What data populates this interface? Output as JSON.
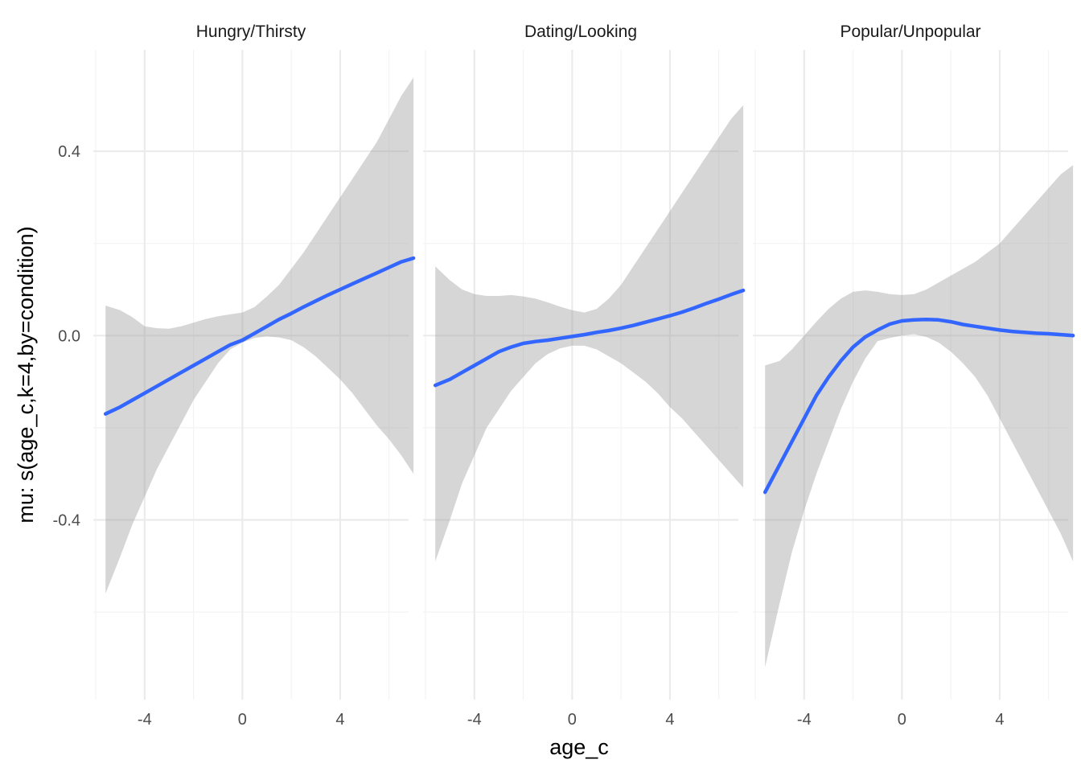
{
  "chart_data": {
    "type": "line",
    "facet_by": "condition",
    "xlabel": "age_c",
    "ylabel": "mu: s(age_c,k=4,by=condition)",
    "xlim": [
      -6.1,
      6.8
    ],
    "ylim": [
      -0.79,
      0.62
    ],
    "x_ticks": [
      -4,
      0,
      4
    ],
    "x_tick_labels": [
      "-4",
      "0",
      "4"
    ],
    "y_ticks": [
      0.4,
      0.0,
      -0.4
    ],
    "y_tick_labels": [
      "0.4",
      "0.0",
      "-0.4"
    ],
    "grid": true,
    "legend": "none",
    "line_color": "#3366ff",
    "ribbon_color": "#999999",
    "panels": [
      {
        "title": "Hungry/Thirsty",
        "x": [
          -5.6,
          -5.0,
          -4.5,
          -4.0,
          -3.5,
          -3.0,
          -2.5,
          -2.0,
          -1.5,
          -1.0,
          -0.5,
          0.0,
          0.5,
          1.0,
          1.5,
          2.0,
          2.5,
          3.0,
          3.5,
          4.0,
          4.5,
          5.0,
          5.5,
          6.0,
          6.5,
          7.0
        ],
        "fit": [
          -0.17,
          -0.155,
          -0.14,
          -0.125,
          -0.11,
          -0.095,
          -0.08,
          -0.065,
          -0.05,
          -0.035,
          -0.02,
          -0.01,
          0.005,
          0.02,
          0.035,
          0.048,
          0.062,
          0.075,
          0.088,
          0.1,
          0.112,
          0.124,
          0.136,
          0.148,
          0.16,
          0.168
        ],
        "lower": [
          -0.56,
          -0.48,
          -0.41,
          -0.35,
          -0.29,
          -0.24,
          -0.19,
          -0.14,
          -0.1,
          -0.06,
          -0.03,
          -0.015,
          -0.005,
          -0.002,
          -0.004,
          -0.01,
          -0.025,
          -0.045,
          -0.07,
          -0.095,
          -0.125,
          -0.16,
          -0.195,
          -0.225,
          -0.26,
          -0.3
        ],
        "upper": [
          0.065,
          0.055,
          0.04,
          0.02,
          0.016,
          0.015,
          0.02,
          0.028,
          0.036,
          0.042,
          0.046,
          0.05,
          0.062,
          0.085,
          0.11,
          0.145,
          0.18,
          0.22,
          0.26,
          0.3,
          0.34,
          0.38,
          0.42,
          0.47,
          0.52,
          0.56
        ]
      },
      {
        "title": "Dating/Looking",
        "x": [
          -5.6,
          -5.0,
          -4.5,
          -4.0,
          -3.5,
          -3.0,
          -2.5,
          -2.0,
          -1.5,
          -1.0,
          -0.5,
          0.0,
          0.5,
          1.0,
          1.5,
          2.0,
          2.5,
          3.0,
          3.5,
          4.0,
          4.5,
          5.0,
          5.5,
          6.0,
          6.5,
          7.0
        ],
        "fit": [
          -0.108,
          -0.095,
          -0.08,
          -0.065,
          -0.05,
          -0.035,
          -0.025,
          -0.017,
          -0.013,
          -0.01,
          -0.006,
          -0.002,
          0.002,
          0.007,
          0.011,
          0.016,
          0.022,
          0.029,
          0.036,
          0.043,
          0.051,
          0.06,
          0.07,
          0.079,
          0.089,
          0.098
        ],
        "lower": [
          -0.49,
          -0.4,
          -0.32,
          -0.26,
          -0.2,
          -0.16,
          -0.12,
          -0.09,
          -0.06,
          -0.04,
          -0.028,
          -0.022,
          -0.022,
          -0.03,
          -0.045,
          -0.06,
          -0.08,
          -0.1,
          -0.125,
          -0.155,
          -0.18,
          -0.21,
          -0.24,
          -0.27,
          -0.3,
          -0.33
        ],
        "upper": [
          0.15,
          0.12,
          0.1,
          0.09,
          0.086,
          0.086,
          0.088,
          0.085,
          0.08,
          0.072,
          0.063,
          0.055,
          0.05,
          0.058,
          0.08,
          0.11,
          0.15,
          0.19,
          0.23,
          0.27,
          0.31,
          0.35,
          0.39,
          0.43,
          0.47,
          0.5
        ]
      },
      {
        "title": "Popular/Unpopular",
        "x": [
          -5.6,
          -5.0,
          -4.5,
          -4.0,
          -3.5,
          -3.0,
          -2.5,
          -2.0,
          -1.5,
          -1.0,
          -0.5,
          0.0,
          0.5,
          1.0,
          1.5,
          2.0,
          2.5,
          3.0,
          3.5,
          4.0,
          4.5,
          5.0,
          5.5,
          6.0,
          6.5,
          7.0
        ],
        "fit": [
          -0.34,
          -0.28,
          -0.23,
          -0.18,
          -0.13,
          -0.09,
          -0.055,
          -0.025,
          -0.003,
          0.012,
          0.025,
          0.032,
          0.034,
          0.035,
          0.034,
          0.03,
          0.024,
          0.02,
          0.016,
          0.012,
          0.009,
          0.007,
          0.005,
          0.004,
          0.002,
          0.0
        ],
        "lower": [
          -0.72,
          -0.58,
          -0.47,
          -0.38,
          -0.3,
          -0.23,
          -0.16,
          -0.1,
          -0.05,
          -0.012,
          -0.005,
          0.0,
          0.003,
          -0.003,
          -0.015,
          -0.035,
          -0.06,
          -0.09,
          -0.13,
          -0.18,
          -0.23,
          -0.28,
          -0.33,
          -0.38,
          -0.43,
          -0.49
        ],
        "upper": [
          -0.065,
          -0.055,
          -0.03,
          0.0,
          0.03,
          0.058,
          0.08,
          0.095,
          0.098,
          0.095,
          0.09,
          0.088,
          0.09,
          0.1,
          0.115,
          0.13,
          0.145,
          0.16,
          0.18,
          0.2,
          0.23,
          0.26,
          0.29,
          0.32,
          0.35,
          0.37
        ]
      }
    ]
  }
}
